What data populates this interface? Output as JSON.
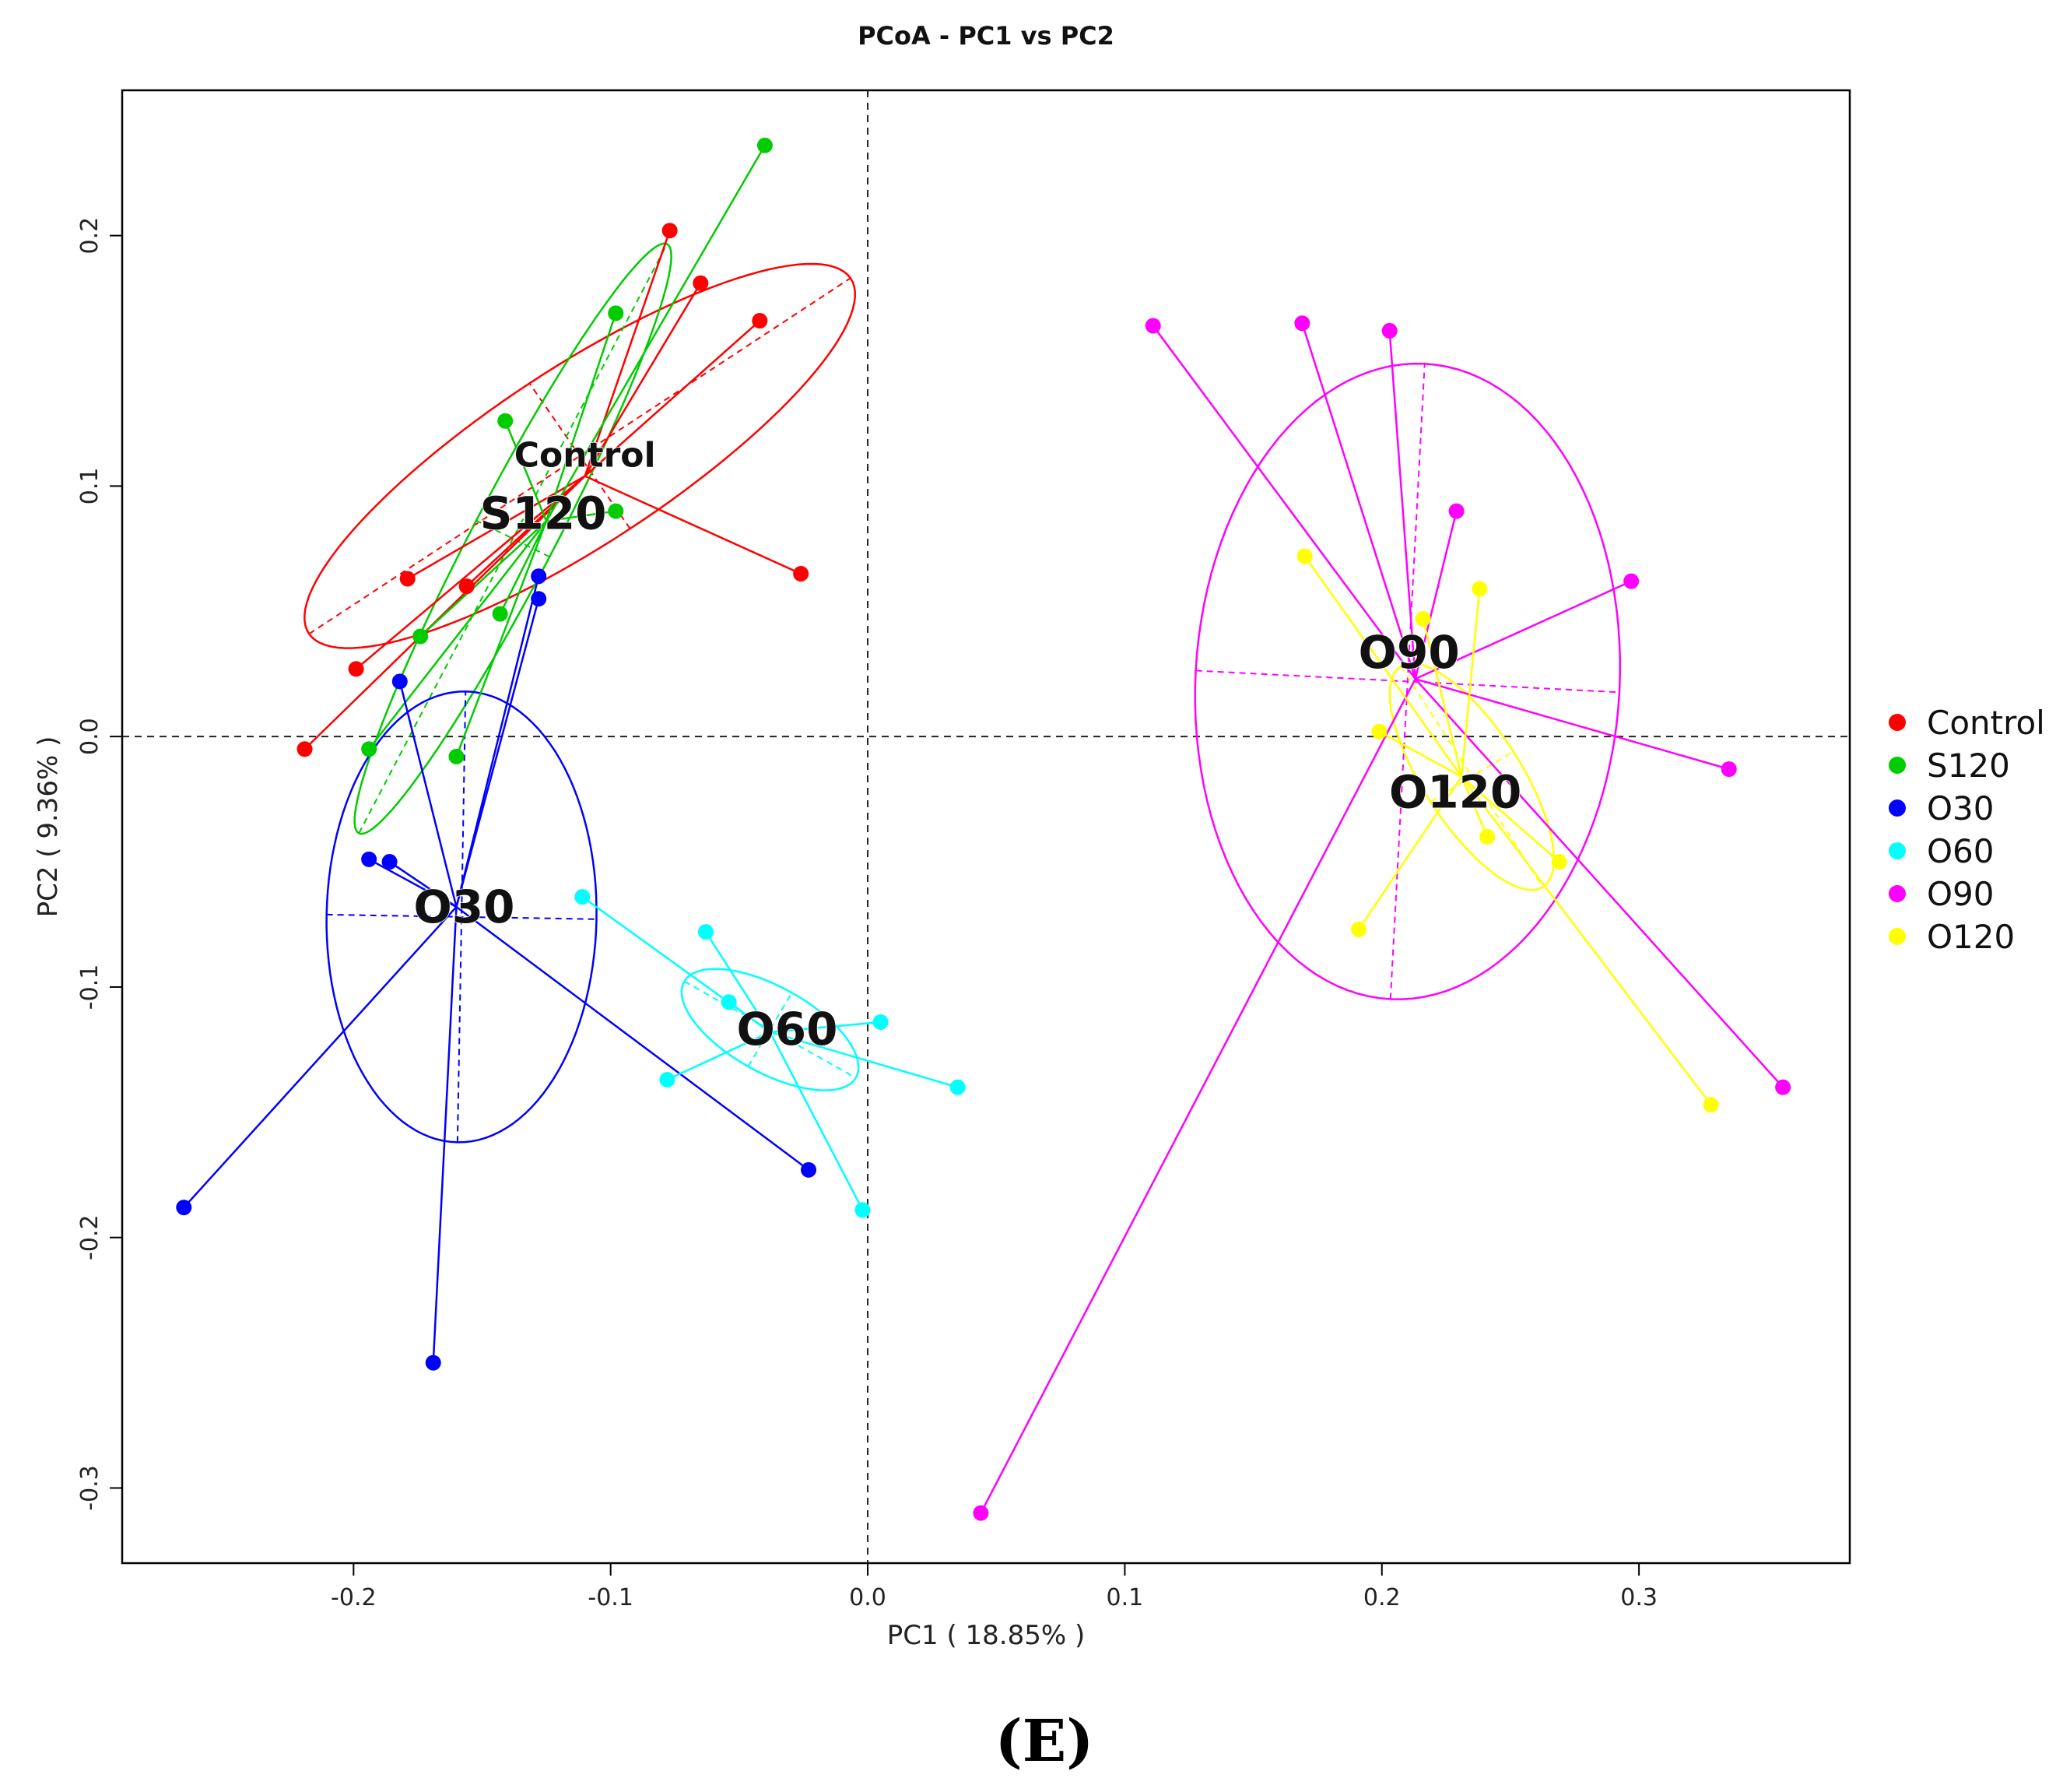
{
  "chart_data": {
    "type": "scatter",
    "title": "PCoA - PC1 vs PC2",
    "xlabel": "PC1 ( 18.85% )",
    "ylabel": "PC2 ( 9.36% )",
    "xlim": [
      -0.29,
      0.382
    ],
    "ylim": [
      -0.33,
      0.258
    ],
    "xticks": [
      -0.2,
      -0.1,
      0.0,
      0.1,
      0.2,
      0.3
    ],
    "xtick_labels": [
      "-0.2",
      "-0.1",
      "0.0",
      "0.1",
      "0.2",
      "0.3"
    ],
    "yticks": [
      -0.3,
      -0.2,
      -0.1,
      0.0,
      0.1,
      0.2
    ],
    "ytick_labels": [
      "-0.3",
      "-0.2",
      "-0.1",
      "0.0",
      "0.1",
      "0.2"
    ],
    "grid": false,
    "reference_lines": {
      "x": 0.0,
      "y": 0.0,
      "style": "dashed"
    },
    "legend_position": "right",
    "panel_label": "(E)",
    "series": [
      {
        "name": "Control",
        "color": "#ff0000",
        "label": "Control",
        "centroid": [
          -0.11,
          0.104
        ],
        "ellipse": {
          "cx": -0.112,
          "cy": 0.112,
          "rx": 0.127,
          "ry": 0.035,
          "angle_deg": 34
        },
        "points": [
          [
            -0.219,
            -0.005
          ],
          [
            -0.199,
            0.027
          ],
          [
            -0.179,
            0.063
          ],
          [
            -0.156,
            0.06
          ],
          [
            -0.077,
            0.202
          ],
          [
            -0.065,
            0.181
          ],
          [
            -0.042,
            0.166
          ],
          [
            -0.026,
            0.065
          ]
        ]
      },
      {
        "name": "S120",
        "color": "#00cc00",
        "label": "S120",
        "centroid": [
          -0.125,
          0.086
        ],
        "ellipse": {
          "cx": -0.138,
          "cy": 0.079,
          "rx": 0.132,
          "ry": 0.016,
          "angle_deg": 63
        },
        "points": [
          [
            -0.194,
            -0.005
          ],
          [
            -0.174,
            0.04
          ],
          [
            -0.16,
            -0.008
          ],
          [
            -0.143,
            0.049
          ],
          [
            -0.141,
            0.126
          ],
          [
            -0.098,
            0.169
          ],
          [
            -0.098,
            0.09
          ],
          [
            -0.04,
            0.236
          ]
        ]
      },
      {
        "name": "O30",
        "color": "#0000ff",
        "label": "O30",
        "centroid": [
          -0.16,
          -0.068
        ],
        "ellipse": {
          "cx": -0.158,
          "cy": -0.072,
          "rx": 0.0525,
          "ry": 0.09,
          "angle_deg": -1
        },
        "points": [
          [
            -0.266,
            -0.188
          ],
          [
            -0.194,
            -0.049
          ],
          [
            -0.186,
            -0.05
          ],
          [
            -0.182,
            0.022
          ],
          [
            -0.169,
            -0.25
          ],
          [
            -0.128,
            0.064
          ],
          [
            -0.128,
            0.055
          ],
          [
            -0.023,
            -0.173
          ]
        ]
      },
      {
        "name": "O60",
        "color": "#00ffff",
        "label": "O60",
        "centroid": [
          -0.038,
          -0.118
        ],
        "ellipse": {
          "cx": -0.038,
          "cy": -0.117,
          "rx": 0.0385,
          "ry": 0.017,
          "angle_deg": -30
        },
        "points": [
          [
            -0.111,
            -0.064
          ],
          [
            -0.078,
            -0.137
          ],
          [
            -0.063,
            -0.078
          ],
          [
            -0.054,
            -0.106
          ],
          [
            -0.002,
            -0.189
          ],
          [
            0.005,
            -0.114
          ],
          [
            0.035,
            -0.14
          ]
        ]
      },
      {
        "name": "O90",
        "color": "#ff00ff",
        "label": "O90",
        "centroid": [
          0.213,
          0.023
        ],
        "ellipse": {
          "cx": 0.21,
          "cy": 0.022,
          "rx": 0.0825,
          "ry": 0.127,
          "angle_deg": -3
        },
        "points": [
          [
            0.044,
            -0.31
          ],
          [
            0.111,
            0.164
          ],
          [
            0.169,
            0.165
          ],
          [
            0.203,
            0.162
          ],
          [
            0.229,
            0.09
          ],
          [
            0.297,
            0.062
          ],
          [
            0.335,
            -0.013
          ],
          [
            0.356,
            -0.14
          ]
        ]
      },
      {
        "name": "O120",
        "color": "#ffff00",
        "label": "O120",
        "centroid": [
          0.231,
          -0.016
        ],
        "ellipse": {
          "cx": 0.235,
          "cy": -0.016,
          "rx": 0.052,
          "ry": 0.019,
          "angle_deg": -58
        },
        "points": [
          [
            0.17,
            0.072
          ],
          [
            0.191,
            -0.077
          ],
          [
            0.199,
            0.002
          ],
          [
            0.216,
            0.047
          ],
          [
            0.238,
            0.059
          ],
          [
            0.241,
            -0.04
          ],
          [
            0.269,
            -0.05
          ],
          [
            0.328,
            -0.147
          ]
        ]
      }
    ]
  }
}
